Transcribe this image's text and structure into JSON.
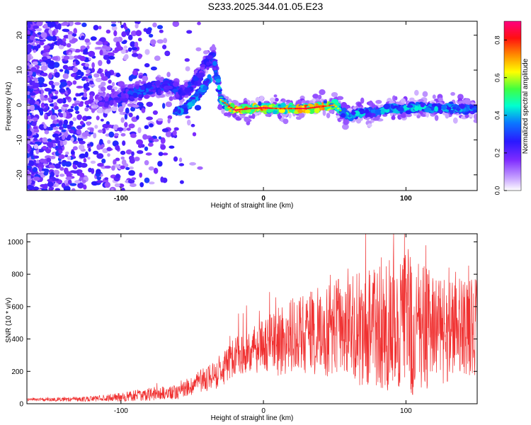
{
  "figure": {
    "title": "S233.2025.344.01.05.E23"
  },
  "colors": {
    "snr_line": "#f03030",
    "axis": "#000000",
    "background": "#ffffff"
  },
  "chart_data": [
    {
      "type": "heatmap",
      "title": "S233.2025.344.01.05.E23",
      "xlabel": "Height of straight line (km)",
      "ylabel": "Frequency (Hz)",
      "xlim": [
        -166,
        150
      ],
      "ylim": [
        -24.5,
        24
      ],
      "x_ticks": [
        -100,
        0,
        100
      ],
      "y_ticks": [
        -20,
        -10,
        0,
        10,
        20
      ],
      "colormap": "rainbow (white-violet-blue-cyan-green-yellow-orange-red-magenta)",
      "ridge": {
        "description": "dominant frequency track versus height",
        "x": [
          -110,
          -95,
          -85,
          -75,
          -65,
          -58,
          -52,
          -45,
          -40,
          -35,
          -30,
          -20,
          -10,
          0,
          10,
          20,
          30,
          40,
          50,
          55,
          60,
          70,
          80,
          90,
          100,
          110,
          120,
          130,
          140,
          150
        ],
        "freq": [
          1,
          3,
          4,
          5,
          5.5,
          3,
          5,
          8,
          12,
          14,
          1.5,
          -1.5,
          -1,
          -0.8,
          -1,
          -1,
          -1,
          -0.5,
          0,
          -2,
          -3,
          -2,
          -2,
          -1,
          -1,
          -0.5,
          -1,
          -1,
          -1,
          -1
        ],
        "amplitude": [
          0.25,
          0.3,
          0.35,
          0.3,
          0.35,
          0.25,
          0.3,
          0.28,
          0.3,
          0.28,
          0.55,
          0.8,
          0.7,
          0.75,
          0.65,
          0.7,
          0.75,
          0.7,
          0.6,
          0.45,
          0.4,
          0.45,
          0.4,
          0.45,
          0.4,
          0.45,
          0.4,
          0.45,
          0.4,
          0.35
        ]
      },
      "secondary_branch": {
        "x": [
          -62,
          -55,
          -48,
          -42,
          -37
        ],
        "freq": [
          -2,
          -1,
          2,
          5,
          8
        ]
      },
      "colorbar": {
        "label": "Normalized spectral amplitude",
        "range": [
          0,
          0.9
        ],
        "ticks": [
          "0.0",
          "0.2",
          "0.4",
          "0.6",
          "0.8"
        ]
      }
    },
    {
      "type": "line",
      "xlabel": "Height of straight line (km)",
      "ylabel": "SNR (10 * v/v)",
      "xlim": [
        -166,
        150
      ],
      "ylim": [
        0,
        1050
      ],
      "x_ticks": [
        -100,
        0,
        100
      ],
      "y_ticks": [
        0,
        200,
        400,
        600,
        800,
        1000
      ],
      "series": [
        {
          "name": "SNR",
          "envelope": {
            "x": [
              -166,
              -140,
              -120,
              -100,
              -80,
              -60,
              -50,
              -40,
              -30,
              -25,
              -20,
              -10,
              0,
              10,
              20,
              30,
              40,
              50,
              60,
              70,
              80,
              90,
              100,
              110,
              120,
              130,
              140,
              150
            ],
            "mean": [
              25,
              28,
              30,
              40,
              60,
              70,
              110,
              160,
              180,
              260,
              300,
              330,
              350,
              380,
              430,
              440,
              450,
              460,
              450,
              470,
              480,
              470,
              480,
              470,
              460,
              450,
              460,
              470
            ],
            "spread": [
              8,
              10,
              12,
              20,
              30,
              30,
              40,
              60,
              70,
              80,
              90,
              100,
              120,
              150,
              170,
              180,
              200,
              220,
              240,
              260,
              280,
              300,
              320,
              280,
              260,
              240,
              220,
              220
            ]
          },
          "peak": {
            "x": 99,
            "value": 1050
          },
          "samples": 1580
        }
      ]
    }
  ]
}
